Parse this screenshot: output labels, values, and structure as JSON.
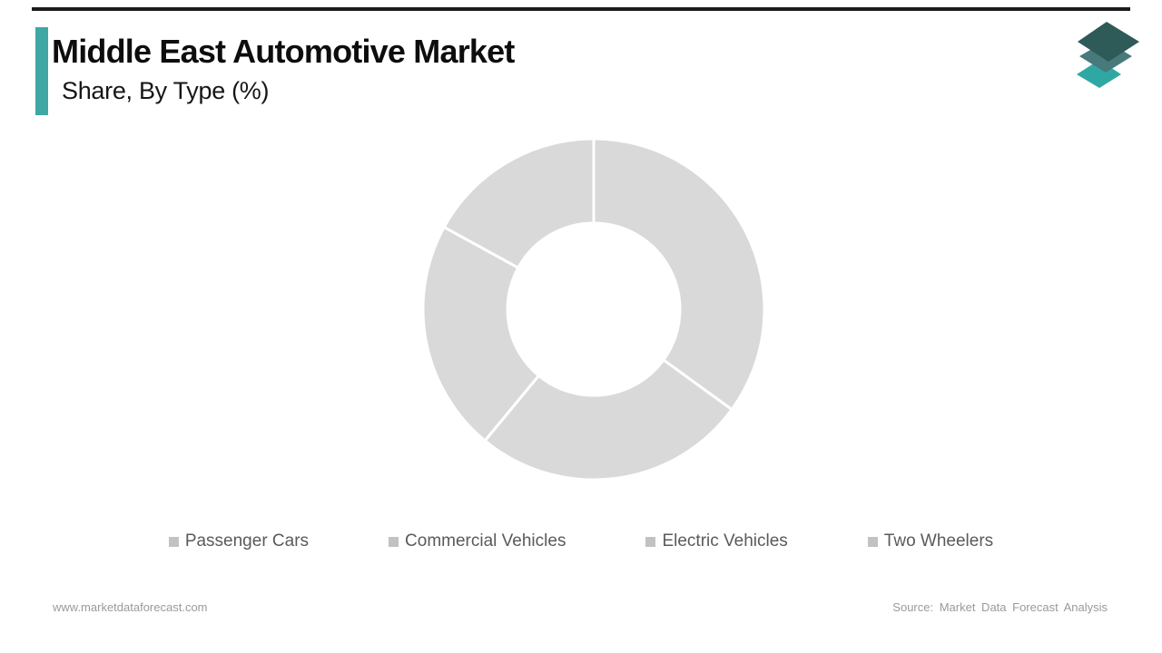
{
  "header": {
    "title": "Middle East Automotive Market",
    "subtitle": "Share, By Type (%)"
  },
  "chart_data": {
    "type": "pie",
    "subtype": "donut",
    "title": "Middle East Automotive Market Share, By Type (%)",
    "categories": [
      "Passenger Cars",
      "Commercial Vehicles",
      "Electric Vehicles",
      "Two Wheelers"
    ],
    "values": [
      35,
      26,
      22,
      17
    ],
    "unit": "%",
    "segment_color": "#d9d9d9",
    "divider_color": "#ffffff",
    "inner_radius_ratio": 0.505,
    "start_angle": "12-oclock",
    "direction": "clockwise",
    "legend_position": "bottom",
    "data_labels_shown": false
  },
  "footer": {
    "website": "www.marketdataforecast.com",
    "source": "Source: Market Data Forecast Analysis"
  },
  "theme": {
    "accent_teal": "#3fa7a4",
    "top_rule": "#1b1b1b",
    "title_text": "#0d0d0d",
    "legend_text": "#5a5a5a",
    "legend_marker": "#c2c2c2",
    "footer_text": "#9a9a9a",
    "logo_layer_bottom": "#2fa8a3",
    "logo_layer_middle": "#48797b",
    "logo_layer_top": "#2e5a57"
  }
}
